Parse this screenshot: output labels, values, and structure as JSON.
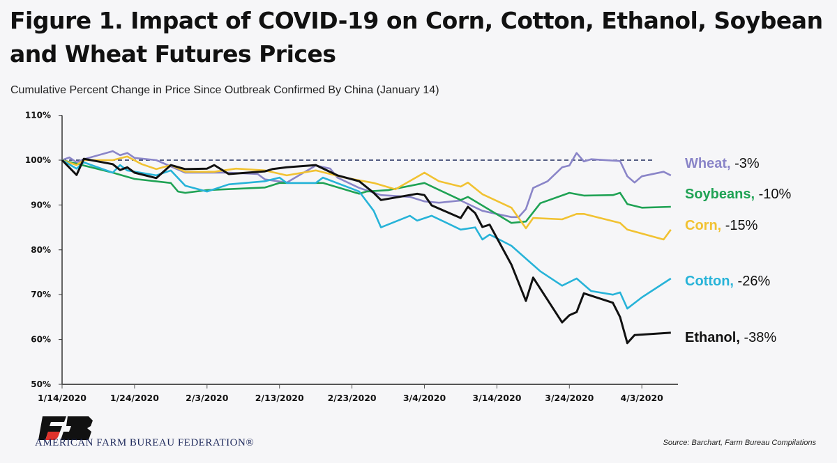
{
  "title_line1": "Figure 1. Impact of COVID-19 on Corn, Cotton, Ethanol, Soybean",
  "title_line2": "and Wheat Futures Prices",
  "subtitle": "Cumulative Percent Change in Price Since Outbreak Confirmed By China (January 14)",
  "org_name": "AMERICAN FARM BUREAU FEDERATION®",
  "logo_text": "FB",
  "source": "Source: Barchart, Farm Bureau Compilations",
  "chart_data": {
    "type": "line",
    "title": "Figure 1. Impact of COVID-19 on Corn, Cotton, Ethanol, Soybean and Wheat Futures Prices",
    "subtitle": "Cumulative Percent Change in Price Since Outbreak Confirmed By China (January 14)",
    "xlabel": "",
    "ylabel": "",
    "xlim": [
      "1/14/2020",
      "4/7/2020"
    ],
    "ylim": [
      50,
      110
    ],
    "x_ticks": [
      "1/14/2020",
      "1/24/2020",
      "2/3/2020",
      "2/13/2020",
      "2/23/2020",
      "3/4/2020",
      "3/14/2020",
      "3/24/2020",
      "4/3/2020"
    ],
    "y_ticks": [
      "50%",
      "60%",
      "70%",
      "80%",
      "90%",
      "100%",
      "110%"
    ],
    "y_tick_values": [
      50,
      60,
      70,
      80,
      90,
      100,
      110
    ],
    "reference_line": {
      "value": 100,
      "style": "dashed",
      "color": "#1f2a5c"
    },
    "grid": false,
    "legend": "right (direct labels)",
    "series": [
      {
        "name": "Wheat",
        "end_label": "-3%",
        "color": "#8a85c8",
        "points": [
          [
            "1/14/2020",
            100
          ],
          [
            "1/15/2020",
            100.6
          ],
          [
            "1/16/2020",
            99.5
          ],
          [
            "1/17/2020",
            100.2
          ],
          [
            "1/21/2020",
            102
          ],
          [
            "1/22/2020",
            101.1
          ],
          [
            "1/23/2020",
            101.6
          ],
          [
            "1/24/2020",
            100.5
          ],
          [
            "1/27/2020",
            100
          ],
          [
            "1/31/2020",
            97.2
          ],
          [
            "2/4/2020",
            97.2
          ],
          [
            "2/6/2020",
            97.2
          ],
          [
            "2/10/2020",
            96.9
          ],
          [
            "2/11/2020",
            95.7
          ],
          [
            "2/14/2020",
            95
          ],
          [
            "2/18/2020",
            98.8
          ],
          [
            "2/20/2020",
            98.1
          ],
          [
            "2/21/2020",
            96.1
          ],
          [
            "2/24/2020",
            93.8
          ],
          [
            "2/27/2020",
            92.2
          ],
          [
            "3/2/2020",
            91.8
          ],
          [
            "3/4/2020",
            90.8
          ],
          [
            "3/6/2020",
            90.5
          ],
          [
            "3/9/2020",
            91
          ],
          [
            "3/12/2020",
            88.7
          ],
          [
            "3/16/2020",
            87.3
          ],
          [
            "3/17/2020",
            87.3
          ],
          [
            "3/18/2020",
            89.1
          ],
          [
            "3/19/2020",
            93.8
          ],
          [
            "3/21/2020",
            95.3
          ],
          [
            "3/23/2020",
            98.4
          ],
          [
            "3/24/2020",
            98.8
          ],
          [
            "3/25/2020",
            101.6
          ],
          [
            "3/26/2020",
            99.7
          ],
          [
            "3/27/2020",
            100.2
          ],
          [
            "3/31/2020",
            99.8
          ],
          [
            "4/1/2020",
            96.4
          ],
          [
            "4/2/2020",
            95
          ],
          [
            "4/3/2020",
            96.4
          ],
          [
            "4/6/2020",
            97.4
          ],
          [
            "4/7/2020",
            96.6
          ]
        ]
      },
      {
        "name": "Soybeans",
        "end_label": "-10%",
        "color": "#1fa254",
        "points": [
          [
            "1/14/2020",
            100
          ],
          [
            "1/17/2020",
            98.8
          ],
          [
            "1/21/2020",
            97.2
          ],
          [
            "1/24/2020",
            95.8
          ],
          [
            "1/29/2020",
            94.9
          ],
          [
            "1/30/2020",
            93
          ],
          [
            "1/31/2020",
            92.7
          ],
          [
            "2/3/2020",
            93.3
          ],
          [
            "2/11/2020",
            93.9
          ],
          [
            "2/13/2020",
            94.9
          ],
          [
            "2/19/2020",
            94.9
          ],
          [
            "2/24/2020",
            92.5
          ],
          [
            "2/25/2020",
            93
          ],
          [
            "2/28/2020",
            93.3
          ],
          [
            "3/4/2020",
            94.9
          ],
          [
            "3/9/2020",
            91.1
          ],
          [
            "3/10/2020",
            91.8
          ],
          [
            "3/16/2020",
            86
          ],
          [
            "3/18/2020",
            86.3
          ],
          [
            "3/20/2020",
            90.4
          ],
          [
            "3/24/2020",
            92.7
          ],
          [
            "3/26/2020",
            92.1
          ],
          [
            "3/30/2020",
            92.2
          ],
          [
            "3/31/2020",
            92.7
          ],
          [
            "4/1/2020",
            90.2
          ],
          [
            "4/3/2020",
            89.4
          ],
          [
            "4/7/2020",
            89.6
          ]
        ]
      },
      {
        "name": "Corn",
        "end_label": "-15%",
        "color": "#f1c232",
        "points": [
          [
            "1/14/2020",
            100
          ],
          [
            "1/16/2020",
            98.9
          ],
          [
            "1/17/2020",
            100
          ],
          [
            "1/21/2020",
            100
          ],
          [
            "1/23/2020",
            100.8
          ],
          [
            "1/25/2020",
            99.1
          ],
          [
            "1/27/2020",
            98
          ],
          [
            "1/29/2020",
            98.9
          ],
          [
            "1/31/2020",
            97.4
          ],
          [
            "2/4/2020",
            97.4
          ],
          [
            "2/7/2020",
            98.1
          ],
          [
            "2/11/2020",
            97.7
          ],
          [
            "2/14/2020",
            96.6
          ],
          [
            "2/18/2020",
            97.7
          ],
          [
            "2/22/2020",
            96.1
          ],
          [
            "2/26/2020",
            94.9
          ],
          [
            "2/29/2020",
            93.5
          ],
          [
            "3/4/2020",
            97.2
          ],
          [
            "3/6/2020",
            95.3
          ],
          [
            "3/9/2020",
            94.1
          ],
          [
            "3/10/2020",
            95
          ],
          [
            "3/12/2020",
            92.4
          ],
          [
            "3/16/2020",
            89.4
          ],
          [
            "3/18/2020",
            84.8
          ],
          [
            "3/19/2020",
            87.1
          ],
          [
            "3/23/2020",
            86.8
          ],
          [
            "3/25/2020",
            88
          ],
          [
            "3/26/2020",
            88
          ],
          [
            "3/31/2020",
            86
          ],
          [
            "4/1/2020",
            84.5
          ],
          [
            "4/6/2020",
            82.3
          ],
          [
            "4/7/2020",
            84.5
          ]
        ]
      },
      {
        "name": "Cotton",
        "end_label": "-26%",
        "color": "#27b3d8",
        "points": [
          [
            "1/14/2020",
            100
          ],
          [
            "1/16/2020",
            98.1
          ],
          [
            "1/17/2020",
            99.5
          ],
          [
            "1/21/2020",
            97.2
          ],
          [
            "1/22/2020",
            98.9
          ],
          [
            "1/23/2020",
            97.7
          ],
          [
            "1/27/2020",
            96.6
          ],
          [
            "1/29/2020",
            97.7
          ],
          [
            "1/31/2020",
            94.3
          ],
          [
            "2/3/2020",
            93
          ],
          [
            "2/6/2020",
            94.6
          ],
          [
            "2/11/2020",
            95.3
          ],
          [
            "2/13/2020",
            96.1
          ],
          [
            "2/14/2020",
            94.9
          ],
          [
            "2/18/2020",
            94.9
          ],
          [
            "2/19/2020",
            96.1
          ],
          [
            "2/24/2020",
            93
          ],
          [
            "2/26/2020",
            88.7
          ],
          [
            "2/27/2020",
            85
          ],
          [
            "3/2/2020",
            87.6
          ],
          [
            "3/3/2020",
            86.5
          ],
          [
            "3/5/2020",
            87.6
          ],
          [
            "3/9/2020",
            84.5
          ],
          [
            "3/11/2020",
            85
          ],
          [
            "3/12/2020",
            82.3
          ],
          [
            "3/13/2020",
            83.4
          ],
          [
            "3/16/2020",
            80.9
          ],
          [
            "3/20/2020",
            75.2
          ],
          [
            "3/23/2020",
            72
          ],
          [
            "3/25/2020",
            73.6
          ],
          [
            "3/27/2020",
            70.8
          ],
          [
            "3/30/2020",
            70
          ],
          [
            "3/31/2020",
            70.5
          ],
          [
            "4/1/2020",
            66.9
          ],
          [
            "4/3/2020",
            69.4
          ],
          [
            "4/7/2020",
            73.6
          ]
        ]
      },
      {
        "name": "Ethanol",
        "end_label": "-38%",
        "color": "#111111",
        "points": [
          [
            "1/14/2020",
            100
          ],
          [
            "1/16/2020",
            96.7
          ],
          [
            "1/17/2020",
            100.3
          ],
          [
            "1/21/2020",
            99.1
          ],
          [
            "1/22/2020",
            97.8
          ],
          [
            "1/23/2020",
            98.4
          ],
          [
            "1/24/2020",
            97.2
          ],
          [
            "1/27/2020",
            96
          ],
          [
            "1/29/2020",
            98.9
          ],
          [
            "1/31/2020",
            98
          ],
          [
            "2/3/2020",
            98.1
          ],
          [
            "2/4/2020",
            98.9
          ],
          [
            "2/6/2020",
            96.9
          ],
          [
            "2/11/2020",
            97.5
          ],
          [
            "2/12/2020",
            98
          ],
          [
            "2/14/2020",
            98.4
          ],
          [
            "2/18/2020",
            98.9
          ],
          [
            "2/21/2020",
            96.6
          ],
          [
            "2/24/2020",
            95.3
          ],
          [
            "2/26/2020",
            92.7
          ],
          [
            "2/27/2020",
            91.1
          ],
          [
            "3/3/2020",
            92.5
          ],
          [
            "3/4/2020",
            92.2
          ],
          [
            "3/5/2020",
            89.9
          ],
          [
            "3/9/2020",
            87.1
          ],
          [
            "3/10/2020",
            89.6
          ],
          [
            "3/11/2020",
            88.2
          ],
          [
            "3/12/2020",
            85.1
          ],
          [
            "3/13/2020",
            85.6
          ],
          [
            "3/16/2020",
            76.7
          ],
          [
            "3/18/2020",
            68.6
          ],
          [
            "3/19/2020",
            73.8
          ],
          [
            "3/23/2020",
            63.8
          ],
          [
            "3/24/2020",
            65.4
          ],
          [
            "3/25/2020",
            66.1
          ],
          [
            "3/26/2020",
            70.3
          ],
          [
            "3/30/2020",
            68.2
          ],
          [
            "3/31/2020",
            65
          ],
          [
            "4/1/2020",
            59.2
          ],
          [
            "4/2/2020",
            61
          ],
          [
            "4/7/2020",
            61.5
          ]
        ]
      }
    ]
  }
}
